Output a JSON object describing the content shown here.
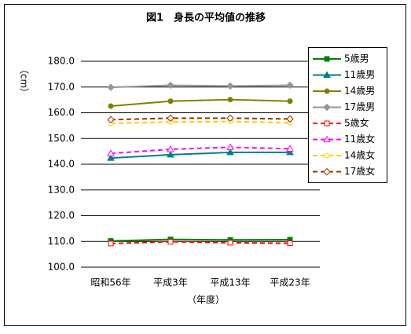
{
  "chart_data": {
    "type": "line",
    "title": "図1　身長の平均値の推移",
    "y_label": "（cm）",
    "x_label": "（年度）",
    "categories": [
      "昭和56年",
      "平成3年",
      "平成13年",
      "平成23年"
    ],
    "ylim": [
      100,
      180
    ],
    "yticks": [
      {
        "value": 100,
        "label": "100.0"
      },
      {
        "value": 110,
        "label": "110.0"
      },
      {
        "value": 120,
        "label": "120.0"
      },
      {
        "value": 130,
        "label": "130.0"
      },
      {
        "value": 140,
        "label": "140.0"
      },
      {
        "value": 150,
        "label": "150.0"
      },
      {
        "value": 160,
        "label": "160.0"
      },
      {
        "value": 170,
        "label": "170.0"
      },
      {
        "value": 180,
        "label": "180.0"
      }
    ],
    "grid": true,
    "legend": "right",
    "series": [
      {
        "name": "5歳男",
        "color": "#008000",
        "marker": "square",
        "filled": true,
        "dash": false,
        "values": [
          110.2,
          110.8,
          110.6,
          110.7
        ]
      },
      {
        "name": "11歳男",
        "color": "#008080",
        "marker": "triangle",
        "filled": true,
        "dash": false,
        "values": [
          142.4,
          143.7,
          144.6,
          144.6
        ]
      },
      {
        "name": "14歳男",
        "color": "#808000",
        "marker": "circle",
        "filled": true,
        "dash": false,
        "values": [
          162.6,
          164.5,
          165.1,
          164.5
        ]
      },
      {
        "name": "17歳男",
        "color": "#969696",
        "marker": "diamond",
        "filled": true,
        "dash": false,
        "values": [
          169.9,
          170.7,
          170.4,
          170.7
        ]
      },
      {
        "name": "5歳女",
        "color": "#ff0000",
        "marker": "square",
        "filled": false,
        "dash": true,
        "values": [
          109.2,
          109.9,
          109.5,
          109.3
        ]
      },
      {
        "name": "11歳女",
        "color": "#ff00ff",
        "marker": "triangle",
        "filled": false,
        "dash": true,
        "values": [
          144.2,
          145.8,
          146.6,
          146.0
        ]
      },
      {
        "name": "14歳女",
        "color": "#ffcc00",
        "marker": "circle",
        "filled": false,
        "dash": true,
        "values": [
          155.9,
          156.4,
          156.6,
          156.1
        ]
      },
      {
        "name": "17歳女",
        "color": "#993300",
        "marker": "diamond",
        "filled": false,
        "dash": true,
        "values": [
          157.3,
          157.9,
          157.9,
          157.6
        ]
      }
    ]
  }
}
